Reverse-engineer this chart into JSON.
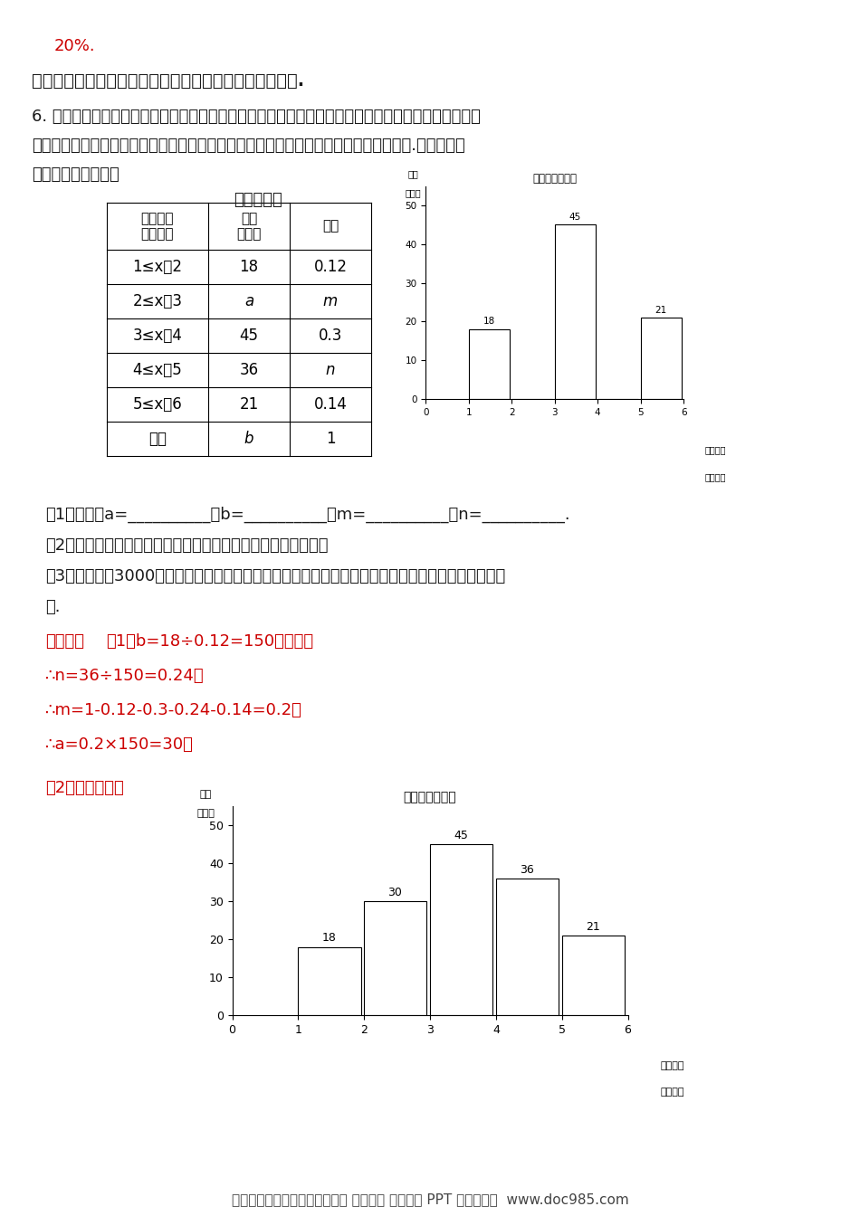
{
  "bg_color": "#ffffff",
  "page_width": 9.5,
  "page_height": 13.44,
  "top_red_text": "20%.",
  "section_title": "三、解答题：解答应写出文字说明、证明过程或演算步骤.",
  "problem_line1": "6. 在开展「经典阅读」活动中，某学校为了解全校学生利用课外时间阅读的情况，学校团委随机抒取若",
  "problem_line2": "干名学生，调查他们一周的课外阅读时间，并根据调查结果绘制了如下尚不完整的统计表.根据图表信",
  "problem_line3": "息，解答下列问题：",
  "table_title": "频率分布表",
  "table_col_h1": "阅读时间\n（小时）",
  "table_col_h2": "频数\n（人）",
  "table_col_h3": "频率",
  "table_rows": [
    [
      "1≤x＜2",
      "18",
      "0.12"
    ],
    [
      "2≤x＜3",
      "a",
      "m"
    ],
    [
      "3≤x＜4",
      "45",
      "0.3"
    ],
    [
      "4≤x＜5",
      "36",
      "n"
    ],
    [
      "5≤x＜6",
      "21",
      "0.14"
    ],
    [
      "合计",
      "b",
      "1"
    ]
  ],
  "small_chart_title": "频数分布直方图",
  "small_chart_values": [
    18,
    0,
    45,
    0,
    21
  ],
  "small_chart_labels": [
    "18",
    "",
    "45",
    "",
    "21"
  ],
  "big_chart_title": "频数分布直方图",
  "big_chart_values": [
    18,
    30,
    45,
    36,
    21
  ],
  "big_chart_labels": [
    "18",
    "30",
    "45",
    "36",
    "21"
  ],
  "q1": "（1）填空：a=__________；b=__________；m=__________；n=__________.",
  "q2": "（2）将频数分布直方图补充完整（画图后请标注相应的频数）；",
  "q3a": "（3）若该校嘱3000名学生，请根据上述调查结果，估算该校学生一周的课外阅读时间不足三小时的人",
  "q3b": "数.",
  "analysis_label": "【解析】",
  "ana1": "（1）b=18÷0.12=150（人），",
  "ana2": "∴n=36÷150=0.24，",
  "ana3": "∴m=1-0.12-0.3-0.24-0.14=0.2，",
  "ana4": "∴a=0.2×150=30．",
  "part2_label": "（2）如图所示：",
  "footer_text": "小学、初中、高中各种试卷真题 知识归纳 文案合同 PPT 等免费下载  www.doc985.com",
  "red_color": "#cc0000",
  "dark_color": "#1a1a1a"
}
